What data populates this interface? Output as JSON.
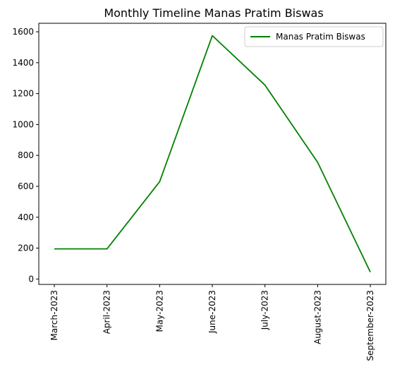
{
  "chart_data": {
    "type": "line",
    "title": "Monthly Timeline Manas Pratim Biswas",
    "xlabel": "",
    "ylabel": "",
    "categories": [
      "March-2023",
      "April-2023",
      "May-2023",
      "June-2023",
      "July-2023",
      "August-2023",
      "September-2023"
    ],
    "series": [
      {
        "name": "Manas Pratim Biswas",
        "color": "#008000",
        "values": [
          195,
          195,
          630,
          1575,
          1255,
          755,
          45
        ]
      }
    ],
    "yticks": [
      0,
      200,
      400,
      600,
      800,
      1000,
      1200,
      1400,
      1600
    ],
    "ylim": [
      -35,
      1655
    ],
    "grid": false,
    "legend_position": "top-right"
  }
}
